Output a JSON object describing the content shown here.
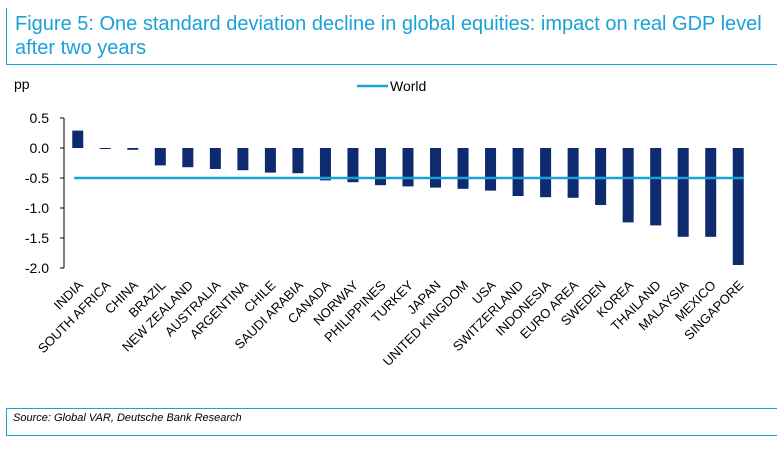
{
  "title": "Figure 5: One standard deviation decline in global equities: impact on real GDP level after two years",
  "source": "Source: Global VAR, Deutsche Bank Research",
  "colors": {
    "accent": "#1aa1d8",
    "bar": "#0d2b6e",
    "world_line": "#1aa1d8"
  },
  "chart_data": {
    "type": "bar",
    "ylabel": "pp",
    "ylim": [
      -2.0,
      0.5
    ],
    "yticks": [
      "0.5",
      "0.0",
      "-0.5",
      "-1.0",
      "-1.5",
      "-2.0"
    ],
    "ytick_values": [
      0.5,
      0.0,
      -0.5,
      -1.0,
      -1.5,
      -2.0
    ],
    "legend": {
      "entries": [
        "World"
      ],
      "placement": "top-center"
    },
    "categories": [
      "INDIA",
      "SOUTH AFRICA",
      "CHINA",
      "BRAZIL",
      "NEW ZEALAND",
      "AUSTRALIA",
      "ARGENTINA",
      "CHILE",
      "SAUDI ARABIA",
      "CANADA",
      "NORWAY",
      "PHILIPPINES",
      "TURKEY",
      "JAPAN",
      "UNITED KINGDOM",
      "USA",
      "SWITZERLAND",
      "INDONESIA",
      "EURO AREA",
      "SWEDEN",
      "KOREA",
      "THAILAND",
      "MALAYSIA",
      "MEXICO",
      "SINGAPORE"
    ],
    "values": [
      0.29,
      -0.01,
      -0.03,
      -0.29,
      -0.32,
      -0.35,
      -0.37,
      -0.41,
      -0.42,
      -0.54,
      -0.57,
      -0.62,
      -0.64,
      -0.66,
      -0.68,
      -0.71,
      -0.8,
      -0.82,
      -0.83,
      -0.95,
      -1.24,
      -1.29,
      -1.48,
      -1.48,
      -1.95
    ],
    "world_value": -0.5
  }
}
